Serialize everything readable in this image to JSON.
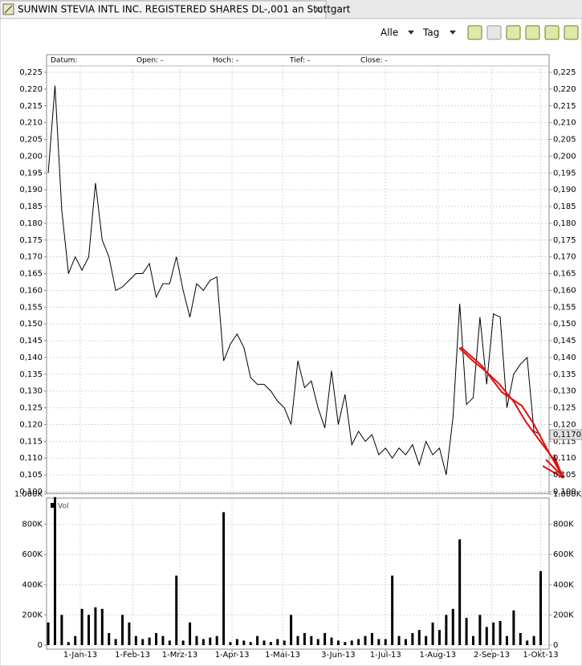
{
  "tab": {
    "title": "SUNWIN STEVIA INTL INC. REGISTERED SHARES DL-,001 an Stuttgart"
  },
  "toolbar": {
    "range": "Alle",
    "interval": "Tag"
  },
  "chart_data": [
    {
      "type": "line",
      "color": "#000000",
      "grid": true,
      "info_labels": [
        "Datum:",
        "Open: -",
        "Hoch: -",
        "Tief: -",
        "Close: -"
      ],
      "last_price": {
        "value": 0.117,
        "label": "0,1170"
      },
      "x": [
        "2012-12-13",
        "2012-12-17",
        "2012-12-21",
        "2012-12-25",
        "2012-12-29",
        "2013-01-02",
        "2013-01-06",
        "2013-01-10",
        "2013-01-14",
        "2013-01-18",
        "2013-01-22",
        "2013-01-26",
        "2013-01-30",
        "2013-02-03",
        "2013-02-07",
        "2013-02-11",
        "2013-02-15",
        "2013-02-19",
        "2013-02-23",
        "2013-02-27",
        "2013-03-03",
        "2013-03-07",
        "2013-03-11",
        "2013-03-15",
        "2013-03-19",
        "2013-03-23",
        "2013-03-27",
        "2013-03-31",
        "2013-04-04",
        "2013-04-08",
        "2013-04-12",
        "2013-04-16",
        "2013-04-20",
        "2013-04-24",
        "2013-04-28",
        "2013-05-02",
        "2013-05-06",
        "2013-05-10",
        "2013-05-14",
        "2013-05-18",
        "2013-05-22",
        "2013-05-26",
        "2013-05-30",
        "2013-06-03",
        "2013-06-07",
        "2013-06-11",
        "2013-06-15",
        "2013-06-19",
        "2013-06-23",
        "2013-06-27",
        "2013-07-01",
        "2013-07-05",
        "2013-07-09",
        "2013-07-13",
        "2013-07-17",
        "2013-07-21",
        "2013-07-25",
        "2013-07-29",
        "2013-08-02",
        "2013-08-06",
        "2013-08-10",
        "2013-08-14",
        "2013-08-18",
        "2013-08-22",
        "2013-08-26",
        "2013-08-30",
        "2013-09-03",
        "2013-09-07",
        "2013-09-11",
        "2013-09-15",
        "2013-09-19",
        "2013-09-23",
        "2013-09-27",
        "2013-10-01"
      ],
      "values": [
        0.195,
        0.221,
        0.184,
        0.165,
        0.17,
        0.166,
        0.17,
        0.192,
        0.175,
        0.17,
        0.16,
        0.161,
        0.163,
        0.165,
        0.165,
        0.168,
        0.158,
        0.162,
        0.162,
        0.17,
        0.16,
        0.152,
        0.162,
        0.16,
        0.163,
        0.164,
        0.139,
        0.144,
        0.147,
        0.143,
        0.134,
        0.132,
        0.132,
        0.13,
        0.127,
        0.125,
        0.12,
        0.139,
        0.131,
        0.133,
        0.125,
        0.119,
        0.136,
        0.12,
        0.129,
        0.114,
        0.118,
        0.115,
        0.117,
        0.111,
        0.113,
        0.11,
        0.113,
        0.111,
        0.114,
        0.108,
        0.115,
        0.111,
        0.113,
        0.105,
        0.122,
        0.156,
        0.126,
        0.128,
        0.152,
        0.132,
        0.153,
        0.152,
        0.125,
        0.135,
        0.138,
        0.14,
        0.118,
        0.117
      ],
      "xlim": [
        "2012-12-12",
        "2013-10-06"
      ],
      "ylim": [
        0.1,
        0.225
      ],
      "yticks": [
        {
          "value": 0.1,
          "label": "0,100"
        },
        {
          "value": 0.105,
          "label": "0,105"
        },
        {
          "value": 0.11,
          "label": "0,110"
        },
        {
          "value": 0.115,
          "label": "0,115"
        },
        {
          "value": 0.12,
          "label": "0,120"
        },
        {
          "value": 0.125,
          "label": "0,125"
        },
        {
          "value": 0.13,
          "label": "0,130"
        },
        {
          "value": 0.135,
          "label": "0,135"
        },
        {
          "value": 0.14,
          "label": "0,140"
        },
        {
          "value": 0.145,
          "label": "0,145"
        },
        {
          "value": 0.15,
          "label": "0,150"
        },
        {
          "value": 0.155,
          "label": "0,155"
        },
        {
          "value": 0.16,
          "label": "0,160"
        },
        {
          "value": 0.165,
          "label": "0,165"
        },
        {
          "value": 0.17,
          "label": "0,170"
        },
        {
          "value": 0.175,
          "label": "0,175"
        },
        {
          "value": 0.18,
          "label": "0,180"
        },
        {
          "value": 0.185,
          "label": "0,185"
        },
        {
          "value": 0.19,
          "label": "0,190"
        },
        {
          "value": 0.195,
          "label": "0,195"
        },
        {
          "value": 0.2,
          "label": "0,200"
        },
        {
          "value": 0.205,
          "label": "0,205"
        },
        {
          "value": 0.21,
          "label": "0,210"
        },
        {
          "value": 0.215,
          "label": "0,215"
        },
        {
          "value": 0.22,
          "label": "0,220"
        },
        {
          "value": 0.225,
          "label": "0,225"
        }
      ]
    },
    {
      "type": "bar",
      "name": "Vol",
      "color": "#000000",
      "grid": true,
      "x": [
        "2012-12-13",
        "2012-12-17",
        "2012-12-21",
        "2012-12-25",
        "2012-12-29",
        "2013-01-02",
        "2013-01-06",
        "2013-01-10",
        "2013-01-14",
        "2013-01-18",
        "2013-01-22",
        "2013-01-26",
        "2013-01-30",
        "2013-02-03",
        "2013-02-07",
        "2013-02-11",
        "2013-02-15",
        "2013-02-19",
        "2013-02-23",
        "2013-02-27",
        "2013-03-03",
        "2013-03-07",
        "2013-03-11",
        "2013-03-15",
        "2013-03-19",
        "2013-03-23",
        "2013-03-27",
        "2013-03-31",
        "2013-04-04",
        "2013-04-08",
        "2013-04-12",
        "2013-04-16",
        "2013-04-20",
        "2013-04-24",
        "2013-04-28",
        "2013-05-02",
        "2013-05-06",
        "2013-05-10",
        "2013-05-14",
        "2013-05-18",
        "2013-05-22",
        "2013-05-26",
        "2013-05-30",
        "2013-06-03",
        "2013-06-07",
        "2013-06-11",
        "2013-06-15",
        "2013-06-19",
        "2013-06-23",
        "2013-06-27",
        "2013-07-01",
        "2013-07-05",
        "2013-07-09",
        "2013-07-13",
        "2013-07-17",
        "2013-07-21",
        "2013-07-25",
        "2013-07-29",
        "2013-08-02",
        "2013-08-06",
        "2013-08-10",
        "2013-08-14",
        "2013-08-18",
        "2013-08-22",
        "2013-08-26",
        "2013-08-30",
        "2013-09-03",
        "2013-09-07",
        "2013-09-11",
        "2013-09-15",
        "2013-09-19",
        "2013-09-23",
        "2013-09-27",
        "2013-10-01"
      ],
      "values": [
        150000,
        980000,
        200000,
        20000,
        60000,
        240000,
        200000,
        250000,
        240000,
        80000,
        40000,
        200000,
        150000,
        60000,
        40000,
        50000,
        80000,
        60000,
        30000,
        460000,
        30000,
        150000,
        60000,
        40000,
        50000,
        60000,
        880000,
        20000,
        40000,
        30000,
        20000,
        60000,
        30000,
        20000,
        40000,
        30000,
        200000,
        60000,
        80000,
        60000,
        40000,
        80000,
        50000,
        30000,
        20000,
        30000,
        40000,
        60000,
        80000,
        40000,
        40000,
        460000,
        60000,
        40000,
        80000,
        100000,
        60000,
        150000,
        100000,
        200000,
        240000,
        700000,
        180000,
        60000,
        200000,
        120000,
        150000,
        160000,
        60000,
        230000,
        80000,
        30000,
        60000,
        490000
      ],
      "xlim": [
        "2012-12-12",
        "2013-10-06"
      ],
      "xticks": [
        {
          "value": "2013-01-01",
          "label": "1-Jan-13"
        },
        {
          "value": "2013-02-01",
          "label": "1-Feb-13"
        },
        {
          "value": "2013-03-01",
          "label": "1-Mrz-13"
        },
        {
          "value": "2013-04-01",
          "label": "1-Apr-13"
        },
        {
          "value": "2013-05-01",
          "label": "1-Mai-13"
        },
        {
          "value": "2013-06-03",
          "label": "3-Jun-13"
        },
        {
          "value": "2013-07-01",
          "label": "1-Jul-13"
        },
        {
          "value": "2013-08-01",
          "label": "1-Aug-13"
        },
        {
          "value": "2013-09-02",
          "label": "2-Sep-13"
        },
        {
          "value": "2013-10-01",
          "label": "1-Okt-13"
        }
      ],
      "ylim": [
        0,
        1000000
      ],
      "yticks": [
        0,
        {
          "value": 200000,
          "label": "200K"
        },
        {
          "value": 400000,
          "label": "400K"
        },
        {
          "value": 600000,
          "label": "600K"
        },
        {
          "value": 800000,
          "label": "800K"
        },
        {
          "value": 1000000,
          "label": "1.000K"
        }
      ]
    }
  ]
}
